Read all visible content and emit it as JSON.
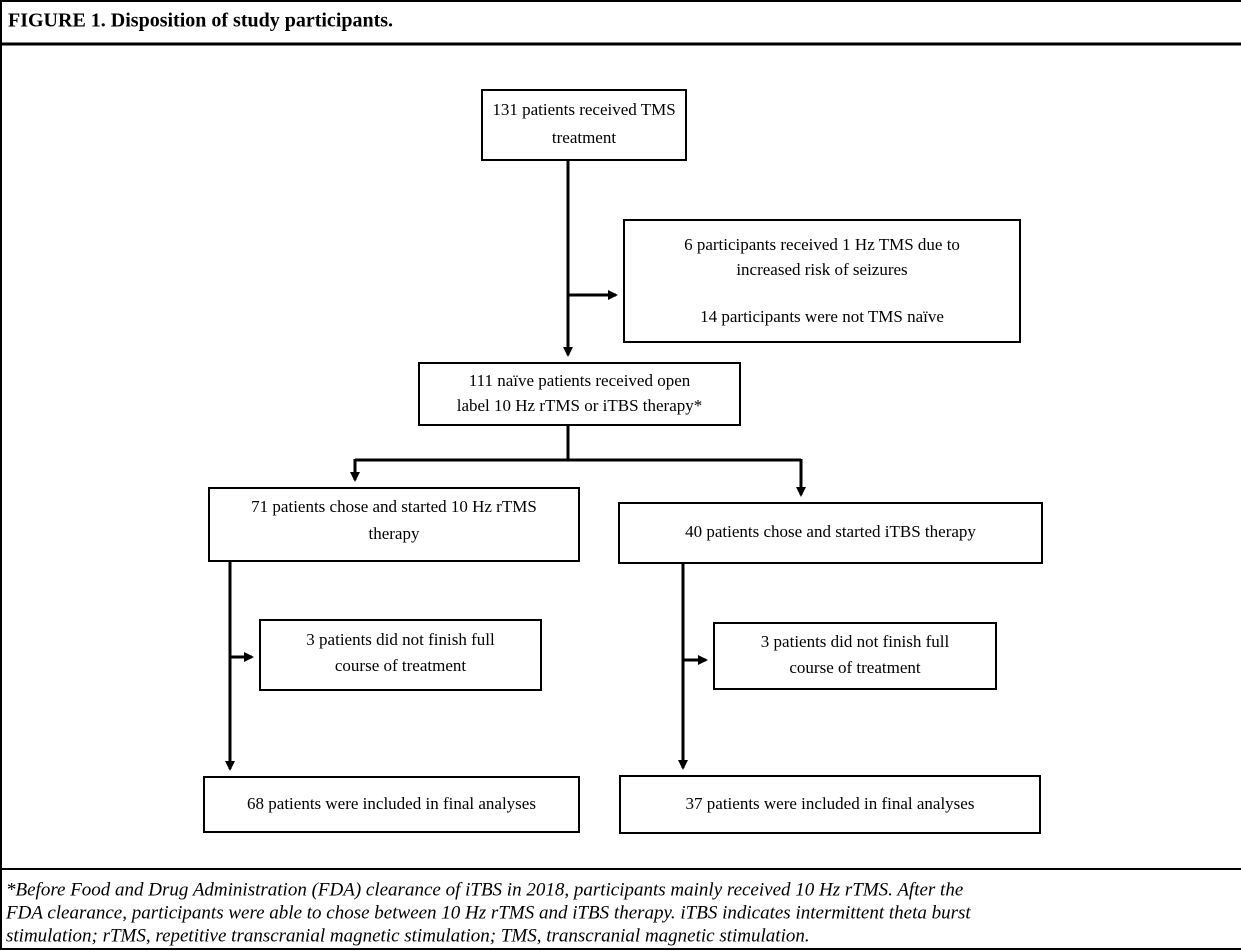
{
  "header": {
    "title": "FIGURE 1. Disposition of study participants."
  },
  "nodes": [
    {
      "lines": [
        "131 patients received TMS",
        "treatment"
      ]
    },
    {
      "lines": [
        "6 participants received 1 Hz TMS due to",
        "increased risk of seizures",
        "14 participants were not TMS naïve"
      ]
    },
    {
      "lines": [
        "111 naïve patients received open",
        "label 10 Hz rTMS or iTBS therapy*"
      ]
    },
    {
      "lines": [
        "71 patients chose and started 10 Hz rTMS",
        "therapy"
      ]
    },
    {
      "lines": [
        "40 patients chose and started iTBS therapy"
      ]
    },
    {
      "lines": [
        "3 patients did not finish full",
        "course of treatment"
      ]
    },
    {
      "lines": [
        "3 patients did not finish full",
        "course of treatment"
      ]
    },
    {
      "lines": [
        "68 patients were included in final analyses"
      ]
    },
    {
      "lines": [
        "37 patients were included in final analyses"
      ]
    }
  ],
  "footnote": {
    "lines": [
      "*Before Food and Drug Administration (FDA) clearance of iTBS in 2018, participants mainly received 10 Hz rTMS. After the",
      "FDA clearance, participants were able to chose between 10 Hz rTMS and iTBS therapy. iTBS indicates intermittent theta burst",
      "stimulation; rTMS, repetitive transcranial magnetic stimulation; TMS, transcranial magnetic stimulation."
    ]
  }
}
